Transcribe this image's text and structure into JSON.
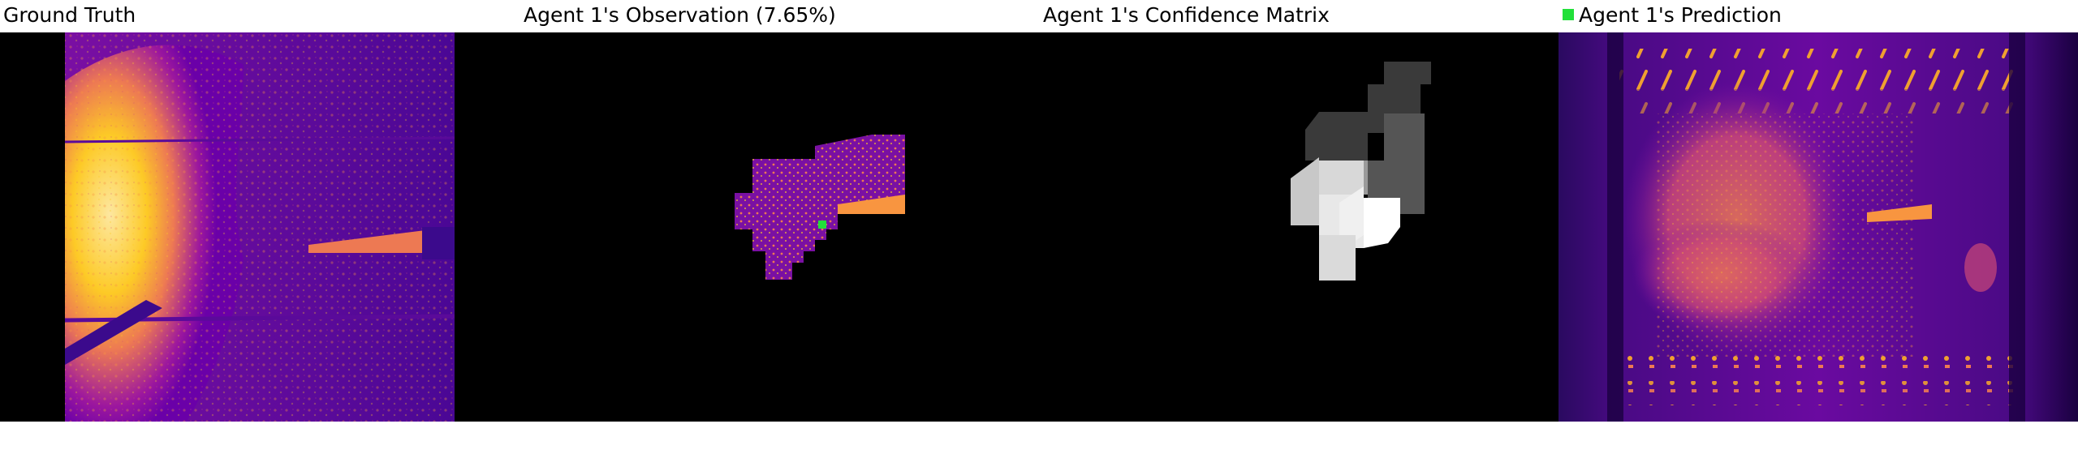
{
  "panels": {
    "ground_truth": {
      "title": "Ground Truth"
    },
    "observation": {
      "title": "Agent 1's Observation (7.65%)"
    },
    "confidence": {
      "title": "Agent 1's Confidence Matrix"
    },
    "prediction": {
      "title": "Agent 1's Prediction"
    }
  },
  "colors": {
    "background": "#000000",
    "agent_marker": "#22e03a",
    "plasma_dark": "#3b0a8c",
    "plasma_mid": "#9c179e",
    "plasma_orange": "#ed7953",
    "plasma_yellow": "#fdca26"
  },
  "legend": {
    "marker_label": "Agent 1's Prediction"
  }
}
